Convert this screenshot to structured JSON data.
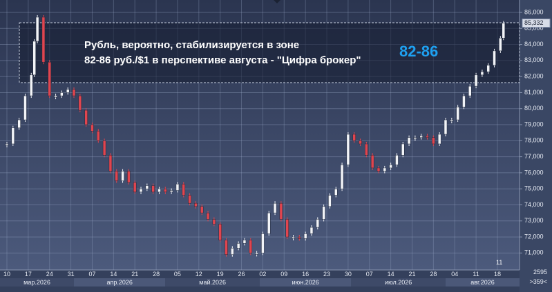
{
  "chart_data": {
    "type": "candlestick",
    "annotation": [
      "Рубль, вероятно, стабилизируется в зоне",
      "82-86 руб./$1 в перспективе августа - \"Цифра брокер\""
    ],
    "highlight": "82-86",
    "x": [
      "2026-03-10",
      "2026-03-12",
      "2026-03-14",
      "2026-03-16",
      "2026-03-18",
      "2026-03-19",
      "2026-03-20",
      "2026-03-22",
      "2026-03-24",
      "2026-03-26",
      "2026-03-28",
      "2026-03-30",
      "2026-04-01",
      "2026-04-03",
      "2026-04-05",
      "2026-04-07",
      "2026-04-09",
      "2026-04-11",
      "2026-04-13",
      "2026-04-15",
      "2026-04-17",
      "2026-04-19",
      "2026-04-21",
      "2026-04-23",
      "2026-04-25",
      "2026-04-27",
      "2026-04-29",
      "2026-05-01",
      "2026-05-03",
      "2026-05-05",
      "2026-05-07",
      "2026-05-09",
      "2026-05-11",
      "2026-05-13",
      "2026-05-15",
      "2026-05-17",
      "2026-05-19",
      "2026-05-21",
      "2026-05-23",
      "2026-05-25",
      "2026-05-27",
      "2026-05-29",
      "2026-05-31",
      "2026-06-02",
      "2026-06-04",
      "2026-06-06",
      "2026-06-08",
      "2026-06-10",
      "2026-06-12",
      "2026-06-14",
      "2026-06-16",
      "2026-06-18",
      "2026-06-20",
      "2026-06-22",
      "2026-06-24",
      "2026-06-26",
      "2026-06-28",
      "2026-06-30",
      "2026-07-02",
      "2026-07-04",
      "2026-07-06",
      "2026-07-08",
      "2026-07-10",
      "2026-07-12",
      "2026-07-14",
      "2026-07-16",
      "2026-07-18",
      "2026-07-20",
      "2026-07-22",
      "2026-07-24",
      "2026-07-26",
      "2026-07-28",
      "2026-07-30",
      "2026-08-01",
      "2026-08-03",
      "2026-08-05",
      "2026-08-07",
      "2026-08-09",
      "2026-08-11",
      "2026-08-13",
      "2026-08-15",
      "2026-08-17",
      "2026-08-19",
      "2026-08-20"
    ],
    "values": [
      77800,
      78800,
      79300,
      80800,
      82100,
      84200,
      85700,
      82900,
      80800,
      80800,
      81000,
      81200,
      80800,
      79900,
      79000,
      78600,
      78000,
      77100,
      76100,
      75500,
      76100,
      75400,
      74800,
      75000,
      75200,
      74800,
      75000,
      74800,
      74900,
      75300,
      74600,
      74100,
      73900,
      73500,
      73100,
      72800,
      71800,
      70900,
      71300,
      71600,
      71800,
      71000,
      71000,
      72200,
      73500,
      74100,
      73100,
      72000,
      72000,
      71900,
      72200,
      72600,
      73100,
      73900,
      74600,
      75000,
      76500,
      78400,
      78000,
      77800,
      77100,
      76300,
      76100,
      76300,
      76500,
      77100,
      77800,
      78200,
      78200,
      78300,
      78200,
      77800,
      78400,
      79300,
      79300,
      80100,
      80800,
      81400,
      82100,
      82300,
      82700,
      83600,
      84400,
      85332
    ],
    "up_color": "#f2f4f8",
    "down_color": "#e0454f",
    "last_label": "85,332",
    "ylim": [
      70200,
      86600
    ],
    "yticks": [
      {
        "value": 71000,
        "label": "71,000"
      },
      {
        "value": 72000,
        "label": "72,000"
      },
      {
        "value": 73000,
        "label": "73,000"
      },
      {
        "value": 74000,
        "label": "74,000"
      },
      {
        "value": 75000,
        "label": "75,000"
      },
      {
        "value": 76000,
        "label": "76,000"
      },
      {
        "value": 77000,
        "label": "77,000"
      },
      {
        "value": 78000,
        "label": "78,000"
      },
      {
        "value": 79000,
        "label": "79,000"
      },
      {
        "value": 80000,
        "label": "80,000"
      },
      {
        "value": 81000,
        "label": "81,000"
      },
      {
        "value": 82000,
        "label": "82,000"
      },
      {
        "value": 83000,
        "label": "83,000"
      },
      {
        "value": 84000,
        "label": "84,000"
      },
      {
        "value": 85000,
        "label": "85,000"
      },
      {
        "value": 86000,
        "label": "86,000"
      }
    ],
    "xlim": [
      "2026-03-10",
      "2026-08-23"
    ],
    "xticks": [
      {
        "value": "2026-03-10",
        "label": "10"
      },
      {
        "value": "2026-03-17",
        "label": "17"
      },
      {
        "value": "2026-03-24",
        "label": "24"
      },
      {
        "value": "2026-03-31",
        "label": "31"
      },
      {
        "value": "2026-04-07",
        "label": "07"
      },
      {
        "value": "2026-04-14",
        "label": "14"
      },
      {
        "value": "2026-04-21",
        "label": "21"
      },
      {
        "value": "2026-04-28",
        "label": "28"
      },
      {
        "value": "2026-05-05",
        "label": "05"
      },
      {
        "value": "2026-05-12",
        "label": "12"
      },
      {
        "value": "2026-05-19",
        "label": "19"
      },
      {
        "value": "2026-05-26",
        "label": "26"
      },
      {
        "value": "2026-06-02",
        "label": "02"
      },
      {
        "value": "2026-06-09",
        "label": "09"
      },
      {
        "value": "2026-06-16",
        "label": "16"
      },
      {
        "value": "2026-06-23",
        "label": "23"
      },
      {
        "value": "2026-06-30",
        "label": "30"
      },
      {
        "value": "2026-07-07",
        "label": "07"
      },
      {
        "value": "2026-07-14",
        "label": "14"
      },
      {
        "value": "2026-07-21",
        "label": "21"
      },
      {
        "value": "2026-07-28",
        "label": "28"
      },
      {
        "value": "2026-08-04",
        "label": "04"
      },
      {
        "value": "2026-08-11",
        "label": "11"
      },
      {
        "value": "2026-08-18",
        "label": "18"
      }
    ],
    "months": [
      {
        "value": "2026-03-01",
        "label": "мар.2026"
      },
      {
        "value": "2026-04-01",
        "label": "апр.2026"
      },
      {
        "value": "2026-05-01",
        "label": "май.2026"
      },
      {
        "value": "2026-06-01",
        "label": "июн.2026"
      },
      {
        "value": "2026-07-01",
        "label": "июл.2026"
      },
      {
        "value": "2026-08-01",
        "label": "авг.2026"
      }
    ],
    "marker_text": "11",
    "corner_text": [
      "2595",
      ">359<"
    ],
    "grid": true
  }
}
